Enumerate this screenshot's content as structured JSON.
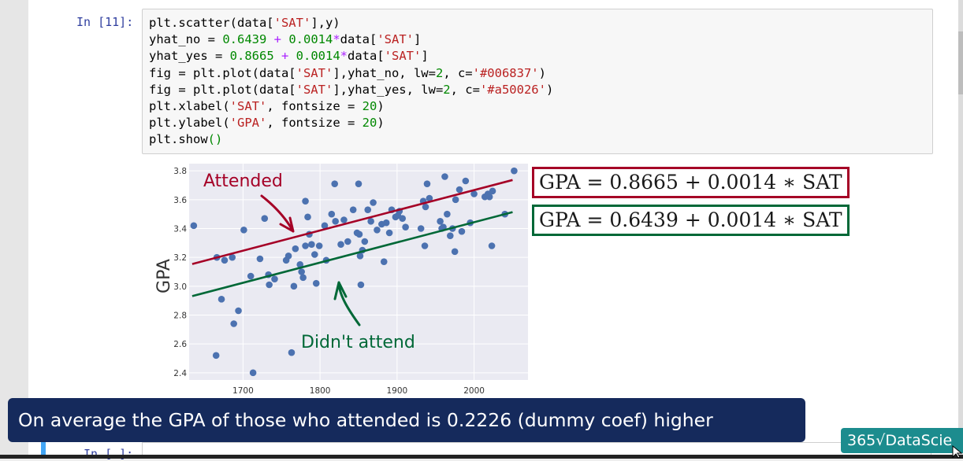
{
  "notebook": {
    "prompt": "In [11]:",
    "next_prompt": "In [ ]:",
    "code_lines": [
      [
        {
          "t": "plt.scatter(data["
        },
        {
          "t": "'SAT'",
          "c": "s"
        },
        {
          "t": "],y)"
        }
      ],
      [
        {
          "t": "yhat_no = "
        },
        {
          "t": "0.6439",
          "c": "n"
        },
        {
          "t": " + ",
          "c": "o"
        },
        {
          "t": "0.0014",
          "c": "n"
        },
        {
          "t": "*",
          "c": "o"
        },
        {
          "t": "data["
        },
        {
          "t": "'SAT'",
          "c": "s"
        },
        {
          "t": "]"
        }
      ],
      [
        {
          "t": "yhat_yes = "
        },
        {
          "t": "0.8665",
          "c": "n"
        },
        {
          "t": " + ",
          "c": "o"
        },
        {
          "t": "0.0014",
          "c": "n"
        },
        {
          "t": "*",
          "c": "o"
        },
        {
          "t": "data["
        },
        {
          "t": "'SAT'",
          "c": "s"
        },
        {
          "t": "]"
        }
      ],
      [
        {
          "t": "fig = plt.plot(data["
        },
        {
          "t": "'SAT'",
          "c": "s"
        },
        {
          "t": "],yhat_no, lw="
        },
        {
          "t": "2",
          "c": "n"
        },
        {
          "t": ", c="
        },
        {
          "t": "'#006837'",
          "c": "s"
        },
        {
          "t": ")"
        }
      ],
      [
        {
          "t": "fig = plt.plot(data["
        },
        {
          "t": "'SAT'",
          "c": "s"
        },
        {
          "t": "],yhat_yes, lw="
        },
        {
          "t": "2",
          "c": "n"
        },
        {
          "t": ", c="
        },
        {
          "t": "'#a50026'",
          "c": "s"
        },
        {
          "t": ")"
        }
      ],
      [
        {
          "t": "plt.xlabel("
        },
        {
          "t": "'SAT'",
          "c": "s"
        },
        {
          "t": ", fontsize = "
        },
        {
          "t": "20",
          "c": "n"
        },
        {
          "t": ")"
        }
      ],
      [
        {
          "t": "plt.ylabel("
        },
        {
          "t": "'GPA'",
          "c": "s"
        },
        {
          "t": ", fontsize = "
        },
        {
          "t": "20",
          "c": "n"
        },
        {
          "t": ")"
        }
      ],
      [
        {
          "t": "plt.show"
        },
        {
          "t": "()",
          "c": "n"
        }
      ]
    ]
  },
  "equations": {
    "attended": "GPA = 0.8665 + 0.0014 ∗ SAT",
    "not_attended": "GPA = 0.6439 + 0.0014 ∗ SAT"
  },
  "caption": "On average the GPA of those who attended is 0.2226 (dummy coef) higher",
  "logo": "365√DataScie",
  "colors": {
    "attended": "#a50026",
    "not_attended": "#006837",
    "points": "#4c72b0",
    "plot_bg": "#eaeaf2",
    "caption_bg": "#152a5c",
    "logo_bg": "#1c8c8e"
  },
  "chart_data": {
    "type": "scatter",
    "xlabel": "",
    "ylabel": "GPA",
    "xlim": [
      1630,
      2070
    ],
    "ylim": [
      2.35,
      3.85
    ],
    "xticks": [
      1700,
      1800,
      1900,
      2000
    ],
    "yticks": [
      2.4,
      2.6,
      2.8,
      3.0,
      3.2,
      3.4,
      3.6,
      3.8
    ],
    "grid": true,
    "annotations": [
      "Attended",
      "Didn't attend"
    ],
    "points": [
      [
        1636,
        3.42
      ],
      [
        1665,
        2.52
      ],
      [
        1666,
        3.2
      ],
      [
        1672,
        2.91
      ],
      [
        1676,
        3.18
      ],
      [
        1686,
        3.2
      ],
      [
        1688,
        2.74
      ],
      [
        1694,
        2.83
      ],
      [
        1701,
        3.39
      ],
      [
        1710,
        3.07
      ],
      [
        1713,
        2.4
      ],
      [
        1722,
        3.19
      ],
      [
        1728,
        3.47
      ],
      [
        1733,
        3.08
      ],
      [
        1734,
        3.01
      ],
      [
        1741,
        3.05
      ],
      [
        1756,
        3.18
      ],
      [
        1759,
        3.21
      ],
      [
        1763,
        2.54
      ],
      [
        1766,
        3.0
      ],
      [
        1768,
        3.26
      ],
      [
        1774,
        3.15
      ],
      [
        1776,
        3.1
      ],
      [
        1778,
        3.06
      ],
      [
        1781,
        3.59
      ],
      [
        1781,
        3.28
      ],
      [
        1784,
        3.48
      ],
      [
        1786,
        3.36
      ],
      [
        1789,
        3.29
      ],
      [
        1793,
        3.22
      ],
      [
        1795,
        3.02
      ],
      [
        1799,
        3.28
      ],
      [
        1806,
        3.42
      ],
      [
        1808,
        3.18
      ],
      [
        1815,
        3.5
      ],
      [
        1819,
        3.71
      ],
      [
        1820,
        3.45
      ],
      [
        1827,
        3.29
      ],
      [
        1831,
        3.46
      ],
      [
        1836,
        3.31
      ],
      [
        1843,
        3.53
      ],
      [
        1848,
        3.37
      ],
      [
        1850,
        3.71
      ],
      [
        1851,
        3.36
      ],
      [
        1852,
        3.21
      ],
      [
        1853,
        3.01
      ],
      [
        1855,
        3.25
      ],
      [
        1858,
        3.31
      ],
      [
        1862,
        3.53
      ],
      [
        1866,
        3.45
      ],
      [
        1869,
        3.58
      ],
      [
        1874,
        3.39
      ],
      [
        1880,
        3.43
      ],
      [
        1883,
        3.17
      ],
      [
        1886,
        3.44
      ],
      [
        1890,
        3.37
      ],
      [
        1893,
        3.53
      ],
      [
        1898,
        3.48
      ],
      [
        1901,
        3.49
      ],
      [
        1903,
        3.52
      ],
      [
        1907,
        3.47
      ],
      [
        1911,
        3.41
      ],
      [
        1931,
        3.4
      ],
      [
        1934,
        3.59
      ],
      [
        1936,
        3.28
      ],
      [
        1937,
        3.55
      ],
      [
        1939,
        3.71
      ],
      [
        1942,
        3.61
      ],
      [
        1956,
        3.45
      ],
      [
        1958,
        3.4
      ],
      [
        1960,
        3.41
      ],
      [
        1962,
        3.76
      ],
      [
        1965,
        3.5
      ],
      [
        1969,
        3.35
      ],
      [
        1972,
        3.4
      ],
      [
        1975,
        3.24
      ],
      [
        1976,
        3.6
      ],
      [
        1981,
        3.67
      ],
      [
        1984,
        3.38
      ],
      [
        1989,
        3.73
      ],
      [
        1995,
        3.44
      ],
      [
        2000,
        3.64
      ],
      [
        2014,
        3.62
      ],
      [
        2018,
        3.64
      ],
      [
        2020,
        3.62
      ],
      [
        2023,
        3.28
      ],
      [
        2024,
        3.66
      ],
      [
        2040,
        3.5
      ],
      [
        2052,
        3.8
      ]
    ],
    "series": [
      {
        "name": "",
        "color": "#a50026",
        "intercept": 0.8665,
        "slope": 0.0014,
        "x": [
          1634,
          2050
        ]
      },
      {
        "name": "",
        "color": "#006837",
        "intercept": 0.6439,
        "slope": 0.0014,
        "x": [
          1634,
          2050
        ]
      }
    ]
  }
}
